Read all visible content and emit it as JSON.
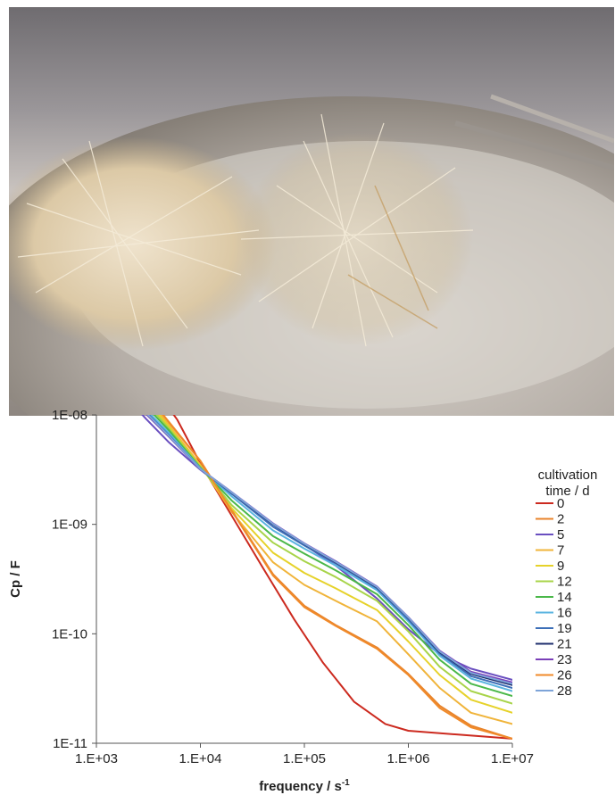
{
  "photo": {
    "subject": "photograph of white fibrous material clumps on a metal dish with tweezers"
  },
  "chart_data": {
    "type": "line",
    "xscale": "log",
    "yscale": "log",
    "xlabel": "frequency / s",
    "xlabel_sup": "-1",
    "ylabel": "Cp / F",
    "xlim": [
      1000,
      10000000
    ],
    "ylim": [
      1e-11,
      1e-08
    ],
    "x_ticks": [
      1000,
      10000,
      100000,
      1000000,
      10000000
    ],
    "x_tick_labels": [
      "1.E+03",
      "1.E+04",
      "1.E+05",
      "1.E+06",
      "1.E+07"
    ],
    "y_ticks": [
      1e-08,
      1e-09,
      1e-10,
      1e-11
    ],
    "y_tick_labels": [
      "1E-08",
      "1E-09",
      "1E-10",
      "1E-11"
    ],
    "grid": false,
    "legend": {
      "title_line1": "cultivation",
      "title_line2": "time / d",
      "placement": "right"
    },
    "series": [
      {
        "name": "0",
        "color": "#cc2a1f",
        "x": [
          3900,
          6000,
          10000,
          20000,
          40000,
          80000,
          150000,
          300000,
          600000,
          1000000,
          3000000,
          10000000
        ],
        "y": [
          1.6e-08,
          9e-09,
          3.6e-09,
          1.2e-09,
          4e-10,
          1.35e-10,
          5.5e-11,
          2.4e-11,
          1.5e-11,
          1.3e-11,
          1.2e-11,
          1.1e-11
        ]
      },
      {
        "name": "2",
        "color": "#e8832a",
        "x": [
          3000,
          5000,
          10000,
          20000,
          50000,
          100000,
          200000,
          500000,
          1000000,
          2000000,
          4000000,
          10000000
        ],
        "y": [
          1.6e-08,
          8.5e-09,
          3.8e-09,
          1.35e-09,
          3.5e-10,
          1.8e-10,
          1.2e-10,
          7.5e-11,
          4.3e-11,
          2.2e-11,
          1.45e-11,
          1.1e-11
        ]
      },
      {
        "name": "5",
        "color": "#6a4fc0",
        "x": [
          2000,
          3000,
          5000,
          10000,
          20000,
          50000,
          100000,
          200000,
          500000,
          1000000,
          2000000,
          4000000,
          10000000
        ],
        "y": [
          1.4e-08,
          9.2e-09,
          5.6e-09,
          3.15e-09,
          1.9e-09,
          1e-09,
          6.5e-10,
          4.2e-10,
          2.1e-10,
          1.1e-10,
          6.5e-11,
          4.8e-11,
          3.8e-11
        ]
      },
      {
        "name": "7",
        "color": "#f0b43a",
        "x": [
          3000,
          5000,
          10000,
          20000,
          50000,
          100000,
          200000,
          500000,
          1000000,
          2000000,
          4000000,
          10000000
        ],
        "y": [
          1.5e-08,
          8e-09,
          3.5e-09,
          1.3e-09,
          4.5e-10,
          2.8e-10,
          2e-10,
          1.3e-10,
          6.5e-11,
          3.2e-11,
          1.9e-11,
          1.5e-11
        ]
      },
      {
        "name": "9",
        "color": "#e6d22a",
        "x": [
          2800,
          5000,
          10000,
          20000,
          50000,
          100000,
          200000,
          500000,
          1000000,
          2000000,
          4000000,
          10000000
        ],
        "y": [
          1.5e-08,
          7.8e-09,
          3.4e-09,
          1.4e-09,
          5.5e-10,
          3.6e-10,
          2.6e-10,
          1.65e-10,
          8.5e-11,
          4.2e-11,
          2.5e-11,
          1.9e-11
        ]
      },
      {
        "name": "12",
        "color": "#a8d44a",
        "x": [
          2600,
          5000,
          10000,
          20000,
          50000,
          100000,
          200000,
          500000,
          1000000,
          2000000,
          4000000,
          10000000
        ],
        "y": [
          1.5e-08,
          7.5e-09,
          3.35e-09,
          1.5e-09,
          6.8e-10,
          4.6e-10,
          3.3e-10,
          2e-10,
          1.05e-10,
          5e-11,
          3e-11,
          2.3e-11
        ]
      },
      {
        "name": "14",
        "color": "#4bb84a",
        "x": [
          2400,
          5000,
          10000,
          20000,
          50000,
          100000,
          200000,
          500000,
          1000000,
          2000000,
          4000000,
          10000000
        ],
        "y": [
          1.5e-08,
          7.2e-09,
          3.3e-09,
          1.65e-09,
          7.8e-10,
          5.4e-10,
          3.8e-10,
          2.3e-10,
          1.2e-10,
          5.8e-11,
          3.5e-11,
          2.7e-11
        ]
      },
      {
        "name": "16",
        "color": "#5ab4e0",
        "x": [
          2200,
          5000,
          10000,
          20000,
          50000,
          100000,
          200000,
          500000,
          1000000,
          2000000,
          4000000,
          10000000
        ],
        "y": [
          1.5e-08,
          6.8e-09,
          3.25e-09,
          1.8e-09,
          8.8e-10,
          6e-10,
          4.2e-10,
          2.5e-10,
          1.3e-10,
          6.3e-11,
          3.9e-11,
          3e-11
        ]
      },
      {
        "name": "19",
        "color": "#3d6fb8",
        "x": [
          2100,
          5000,
          10000,
          20000,
          50000,
          100000,
          200000,
          500000,
          1000000,
          2000000,
          4000000,
          10000000
        ],
        "y": [
          1.5e-08,
          6.5e-09,
          3.2e-09,
          1.9e-09,
          9.5e-10,
          6.4e-10,
          4.4e-10,
          2.6e-10,
          1.35e-10,
          6.6e-11,
          4.1e-11,
          3.2e-11
        ]
      },
      {
        "name": "21",
        "color": "#1f2f6e",
        "x": [
          2000,
          5000,
          10000,
          20000,
          50000,
          100000,
          200000,
          500000,
          1000000,
          2000000,
          4000000,
          10000000
        ],
        "y": [
          1.5e-08,
          6.3e-09,
          3.2e-09,
          1.95e-09,
          1e-09,
          6.6e-10,
          4.5e-10,
          2.65e-10,
          1.4e-10,
          6.8e-11,
          4.3e-11,
          3.4e-11
        ]
      },
      {
        "name": "23",
        "color": "#7a3fb8",
        "x": [
          2000,
          5000,
          10000,
          20000,
          50000,
          100000,
          200000,
          500000,
          1000000,
          2000000,
          4000000,
          10000000
        ],
        "y": [
          1.5e-08,
          6.3e-09,
          3.2e-09,
          1.97e-09,
          1.02e-09,
          6.7e-10,
          4.6e-10,
          2.7e-10,
          1.42e-10,
          7e-11,
          4.5e-11,
          3.6e-11
        ]
      },
      {
        "name": "26",
        "color": "#f08a2a",
        "x": [
          3100,
          5000,
          10000,
          20000,
          50000,
          100000,
          200000,
          500000,
          1000000,
          2000000,
          4000000,
          10000000
        ],
        "y": [
          1.5e-08,
          8.6e-09,
          3.8e-09,
          1.33e-09,
          3.4e-10,
          1.75e-10,
          1.18e-10,
          7.3e-11,
          4.2e-11,
          2.1e-11,
          1.4e-11,
          1.1e-11
        ]
      },
      {
        "name": "28",
        "color": "#7ea4d8",
        "x": [
          2050,
          5000,
          10000,
          20000,
          50000,
          100000,
          200000,
          500000,
          1000000,
          2000000,
          4000000,
          10000000
        ],
        "y": [
          1.5e-08,
          6.4e-09,
          3.2e-09,
          1.96e-09,
          1.01e-09,
          6.65e-10,
          4.55e-10,
          2.68e-10,
          1.41e-10,
          6.9e-11,
          4.4e-11,
          3.5e-11
        ]
      }
    ]
  }
}
